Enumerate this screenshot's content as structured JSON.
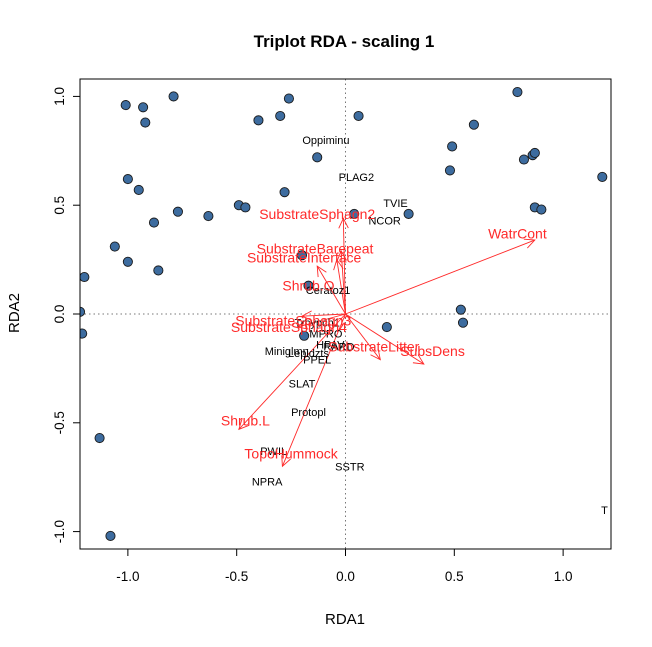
{
  "chart_data": {
    "type": "scatter",
    "title": "Triplot RDA - scaling 1",
    "xlabel": "RDA1",
    "ylabel": "RDA2",
    "xlim": [
      -1.22,
      1.22
    ],
    "ylim": [
      -1.08,
      1.08
    ],
    "xticks": [
      "-1.0",
      "-0.5",
      "0.0",
      "0.5",
      "1.0"
    ],
    "xtick_values": [
      -1.0,
      -0.5,
      0.0,
      0.5,
      1.0
    ],
    "yticks": [
      "-1.0",
      "-0.5",
      "0.0",
      "0.5",
      "1.0"
    ],
    "ytick_values": [
      -1.0,
      -0.5,
      0.0,
      0.5,
      1.0
    ],
    "reference_lines": {
      "x": 0,
      "y": 0,
      "style": "dotted"
    },
    "colors": {
      "sites": "#3d6c9f",
      "site_edge": "#1a1a1a",
      "env": "#ff2a2a",
      "species": "#000000"
    },
    "sites": [
      {
        "x": -1.01,
        "y": 0.96
      },
      {
        "x": -0.93,
        "y": 0.95
      },
      {
        "x": -0.92,
        "y": 0.88
      },
      {
        "x": -0.79,
        "y": 1.0
      },
      {
        "x": -0.4,
        "y": 0.89
      },
      {
        "x": -0.3,
        "y": 0.91
      },
      {
        "x": -0.26,
        "y": 0.99
      },
      {
        "x": 0.06,
        "y": 0.91
      },
      {
        "x": 0.79,
        "y": 1.02
      },
      {
        "x": 0.59,
        "y": 0.87
      },
      {
        "x": 0.49,
        "y": 0.77
      },
      {
        "x": 0.82,
        "y": 0.71
      },
      {
        "x": 0.86,
        "y": 0.73
      },
      {
        "x": 0.87,
        "y": 0.74
      },
      {
        "x": -0.13,
        "y": 0.72
      },
      {
        "x": 0.48,
        "y": 0.66
      },
      {
        "x": 1.18,
        "y": 0.63
      },
      {
        "x": -1.0,
        "y": 0.62
      },
      {
        "x": -0.95,
        "y": 0.57
      },
      {
        "x": -0.28,
        "y": 0.56
      },
      {
        "x": -0.49,
        "y": 0.5
      },
      {
        "x": -0.46,
        "y": 0.49
      },
      {
        "x": -0.77,
        "y": 0.47
      },
      {
        "x": -0.63,
        "y": 0.45
      },
      {
        "x": -0.88,
        "y": 0.42
      },
      {
        "x": 0.04,
        "y": 0.46
      },
      {
        "x": 0.29,
        "y": 0.46
      },
      {
        "x": 0.87,
        "y": 0.49
      },
      {
        "x": 0.9,
        "y": 0.48
      },
      {
        "x": -1.06,
        "y": 0.31
      },
      {
        "x": -1.0,
        "y": 0.24
      },
      {
        "x": -0.86,
        "y": 0.2
      },
      {
        "x": -0.2,
        "y": 0.27
      },
      {
        "x": -1.2,
        "y": 0.17
      },
      {
        "x": -0.17,
        "y": 0.13
      },
      {
        "x": -1.22,
        "y": 0.01
      },
      {
        "x": -1.21,
        "y": -0.09
      },
      {
        "x": 0.53,
        "y": 0.02
      },
      {
        "x": 0.54,
        "y": -0.04
      },
      {
        "x": 0.19,
        "y": -0.06
      },
      {
        "x": -0.19,
        "y": -0.1
      },
      {
        "x": -1.13,
        "y": -0.57
      },
      {
        "x": -1.08,
        "y": -1.02
      }
    ],
    "species": [
      {
        "label": "Oppiminu",
        "x": -0.09,
        "y": 0.8
      },
      {
        "label": "PLAG2",
        "x": 0.05,
        "y": 0.63
      },
      {
        "label": "TVIE",
        "x": 0.23,
        "y": 0.51
      },
      {
        "label": "NCOR",
        "x": 0.18,
        "y": 0.43
      },
      {
        "label": "Ceratoz1",
        "x": -0.08,
        "y": 0.11
      },
      {
        "label": "Trhypch1",
        "x": -0.13,
        "y": -0.04
      },
      {
        "label": "MPRO",
        "x": -0.09,
        "y": -0.09
      },
      {
        "label": "HPAV",
        "x": -0.07,
        "y": -0.14
      },
      {
        "label": "RARD",
        "x": -0.03,
        "y": -0.15
      },
      {
        "label": "Miniglmn",
        "x": -0.27,
        "y": -0.17
      },
      {
        "label": "Lepidzts",
        "x": -0.17,
        "y": -0.18
      },
      {
        "label": "PPEL",
        "x": -0.13,
        "y": -0.21
      },
      {
        "label": "SLAT",
        "x": -0.2,
        "y": -0.32
      },
      {
        "label": "Protopl",
        "x": -0.17,
        "y": -0.45
      },
      {
        "label": "PWIL",
        "x": -0.33,
        "y": -0.63
      },
      {
        "label": "SSTR",
        "x": 0.02,
        "y": -0.7
      },
      {
        "label": "NPRA",
        "x": -0.36,
        "y": -0.77
      },
      {
        "label": "T",
        "x": 1.19,
        "y": -0.9
      }
    ],
    "env_arrows": [
      {
        "label": "WatrCont",
        "x": 0.87,
        "y": 0.34,
        "lx": 0.79,
        "ly": 0.37
      },
      {
        "label": "SubstrateSphagn2",
        "x": -0.01,
        "y": 0.44,
        "lx": -0.13,
        "ly": 0.46
      },
      {
        "label": "SubstrateBarepeat",
        "x": -0.02,
        "y": 0.29,
        "lx": -0.14,
        "ly": 0.3
      },
      {
        "label": "SubstrateInterface",
        "x": -0.04,
        "y": 0.25,
        "lx": -0.19,
        "ly": 0.26
      },
      {
        "label": "Shrub.O",
        "x": -0.13,
        "y": 0.22,
        "lx": -0.17,
        "ly": 0.13
      },
      {
        "label": "SubstrateSphagn3",
        "x": -0.2,
        "y": -0.01,
        "lx": -0.24,
        "ly": -0.03
      },
      {
        "label": "SubstrateSphagn4",
        "x": -0.22,
        "y": -0.06,
        "lx": -0.26,
        "ly": -0.06
      },
      {
        "label": "SubstrateLitter",
        "x": 0.16,
        "y": -0.21,
        "lx": 0.13,
        "ly": -0.15
      },
      {
        "label": "SubsDens",
        "x": 0.36,
        "y": -0.23,
        "lx": 0.4,
        "ly": -0.17
      },
      {
        "label": "Shrub.L",
        "x": -0.49,
        "y": -0.53,
        "lx": -0.46,
        "ly": -0.49
      },
      {
        "label": "TopoHummock",
        "x": -0.29,
        "y": -0.7,
        "lx": -0.25,
        "ly": -0.64
      }
    ]
  }
}
